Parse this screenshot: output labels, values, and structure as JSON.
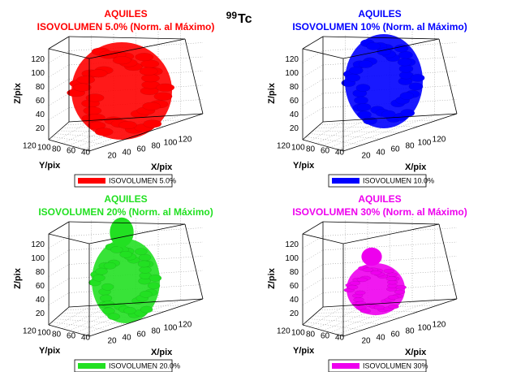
{
  "header": {
    "isotope_mass": "99",
    "isotope": "Tc"
  },
  "panels": [
    {
      "title": "AQUILES",
      "subtitle": "ISOVOLUMEN 5.0% (Norm. al Máximo)",
      "color": "#ff0000",
      "z_label": "Z/pix",
      "y_label": "Y/pix",
      "x_label": "X/pix",
      "z_ticks": [
        20,
        40,
        60,
        80,
        100,
        120
      ],
      "y_ticks": [
        120,
        100,
        80,
        60,
        40
      ],
      "x_ticks": [
        20,
        40,
        60,
        80,
        100,
        120
      ],
      "legend": "ISOVOLUMEN 5.0%"
    },
    {
      "title": "AQUILES",
      "subtitle": "ISOVOLUMEN 10% (Norm. al Máximo)",
      "color": "#0000ff",
      "z_label": "Z/pix",
      "y_label": "Y/pix",
      "x_label": "X/pix",
      "z_ticks": [
        20,
        40,
        60,
        80,
        100,
        120
      ],
      "y_ticks": [
        120,
        100,
        80,
        60,
        40
      ],
      "x_ticks": [
        20,
        40,
        60,
        80,
        100,
        120
      ],
      "legend": "ISOVOLUMEN 10.0%"
    },
    {
      "title": "AQUILES",
      "subtitle": "ISOVOLUMEN 20% (Norm. al Máximo)",
      "color": "#22e022",
      "z_label": "Z/pix",
      "y_label": "Y/pix",
      "x_label": "X/pix",
      "z_ticks": [
        20,
        40,
        60,
        80,
        100,
        120
      ],
      "y_ticks": [
        120,
        100,
        80,
        60,
        40
      ],
      "x_ticks": [
        20,
        40,
        60,
        80,
        100,
        120
      ],
      "legend": "ISOVOLUMEN 20.0%"
    },
    {
      "title": "AQUILES",
      "subtitle": "ISOVOLUMEN 30% (Norm. al Máximo)",
      "color": "#ee00ee",
      "z_label": "Z/pix",
      "y_label": "Y/pix",
      "x_label": "X/pix",
      "z_ticks": [
        20,
        40,
        60,
        80,
        100,
        120
      ],
      "y_ticks": [
        120,
        100,
        80,
        60,
        40
      ],
      "x_ticks": [
        20,
        40,
        60,
        80,
        100,
        120
      ],
      "legend": "ISOVOLUMEN 30%"
    }
  ]
}
